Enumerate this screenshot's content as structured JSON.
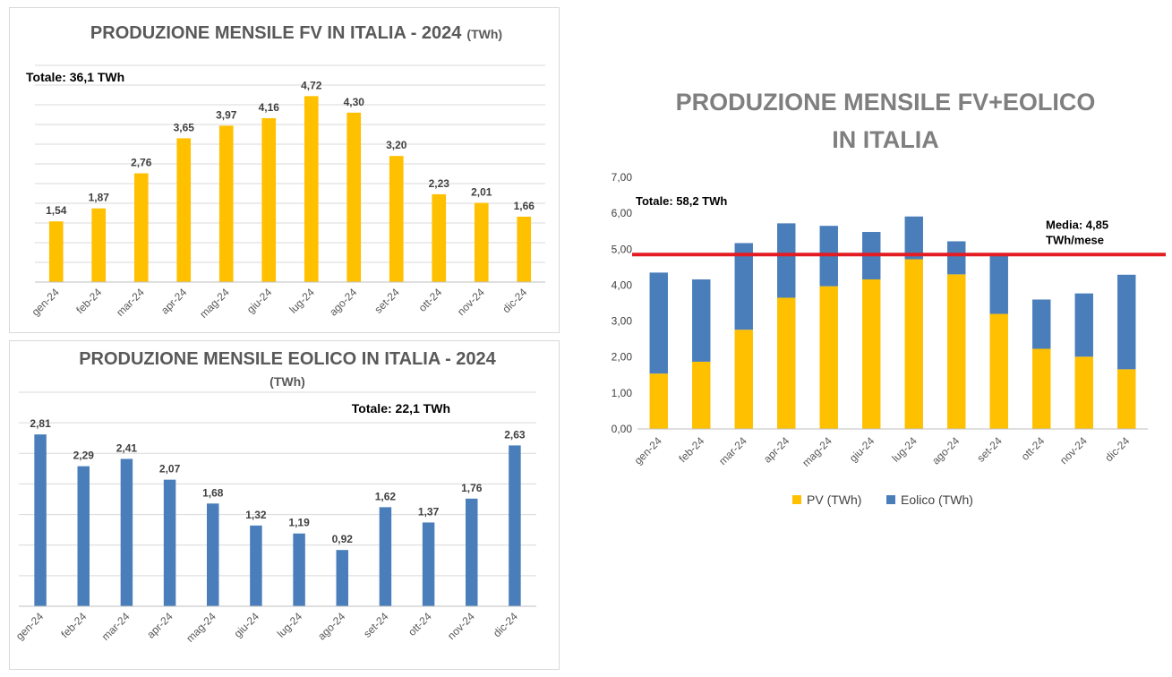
{
  "chart_data": [
    {
      "type": "bar",
      "title": "PRODUZIONE MENSILE FV IN ITALIA - 2024",
      "unit": "(TWh)",
      "annotation": "Totale: 36,1 TWh",
      "categories": [
        "gen-24",
        "feb-24",
        "mar-24",
        "apr-24",
        "mag-24",
        "giu-24",
        "lug-24",
        "ago-24",
        "set-24",
        "ott-24",
        "nov-24",
        "dic-24"
      ],
      "values": [
        1.54,
        1.87,
        2.76,
        3.65,
        3.97,
        4.16,
        4.72,
        4.3,
        3.2,
        2.23,
        2.01,
        1.66
      ],
      "data_labels": [
        "1,54",
        "1,87",
        "2,76",
        "3,65",
        "3,97",
        "4,16",
        "4,72",
        "4,30",
        "3,20",
        "2,23",
        "2,01",
        "1,66"
      ],
      "ylim": [
        0,
        5.5
      ],
      "grid": true,
      "color": "#FFC000"
    },
    {
      "type": "bar",
      "title": "PRODUZIONE MENSILE EOLICO IN ITALIA - 2024",
      "unit": "(TWh)",
      "annotation": "Totale: 22,1 TWh",
      "categories": [
        "gen-24",
        "feb-24",
        "mar-24",
        "apr-24",
        "mag-24",
        "giu-24",
        "lug-24",
        "ago-24",
        "set-24",
        "ott-24",
        "nov-24",
        "dic-24"
      ],
      "values": [
        2.81,
        2.29,
        2.41,
        2.07,
        1.68,
        1.32,
        1.19,
        0.92,
        1.62,
        1.37,
        1.76,
        2.63
      ],
      "data_labels": [
        "2,81",
        "2,29",
        "2,41",
        "2,07",
        "1,68",
        "1,32",
        "1,19",
        "0,92",
        "1,62",
        "1,37",
        "1,76",
        "2,63"
      ],
      "ylim": [
        0,
        3.5
      ],
      "grid": true,
      "color": "#4A7EBB"
    },
    {
      "type": "bar",
      "stacked": true,
      "title_lines": [
        "PRODUZIONE MENSILE FV+EOLICO",
        "IN ITALIA"
      ],
      "annotation": "Totale: 58,2 TWh",
      "average": {
        "value": 4.85,
        "label_lines": [
          "Media: 4,85",
          "TWh/mese"
        ],
        "color": "#E31B23"
      },
      "categories": [
        "gen-24",
        "feb-24",
        "mar-24",
        "apr-24",
        "mag-24",
        "giu-24",
        "lug-24",
        "ago-24",
        "set-24",
        "ott-24",
        "nov-24",
        "dic-24"
      ],
      "series": [
        {
          "name": "PV (TWh)",
          "color": "#FFC000",
          "values": [
            1.54,
            1.87,
            2.76,
            3.65,
            3.97,
            4.16,
            4.72,
            4.3,
            3.2,
            2.23,
            2.01,
            1.66
          ]
        },
        {
          "name": "Eolico (TWh)",
          "color": "#4A7EBB",
          "values": [
            2.81,
            2.29,
            2.41,
            2.07,
            1.68,
            1.32,
            1.19,
            0.92,
            1.62,
            1.37,
            1.76,
            2.63
          ]
        }
      ],
      "yticks": [
        "0,00",
        "1,00",
        "2,00",
        "3,00",
        "4,00",
        "5,00",
        "6,00",
        "7,00"
      ],
      "ylim": [
        0,
        7
      ],
      "grid": false,
      "legend": "bottom"
    }
  ]
}
